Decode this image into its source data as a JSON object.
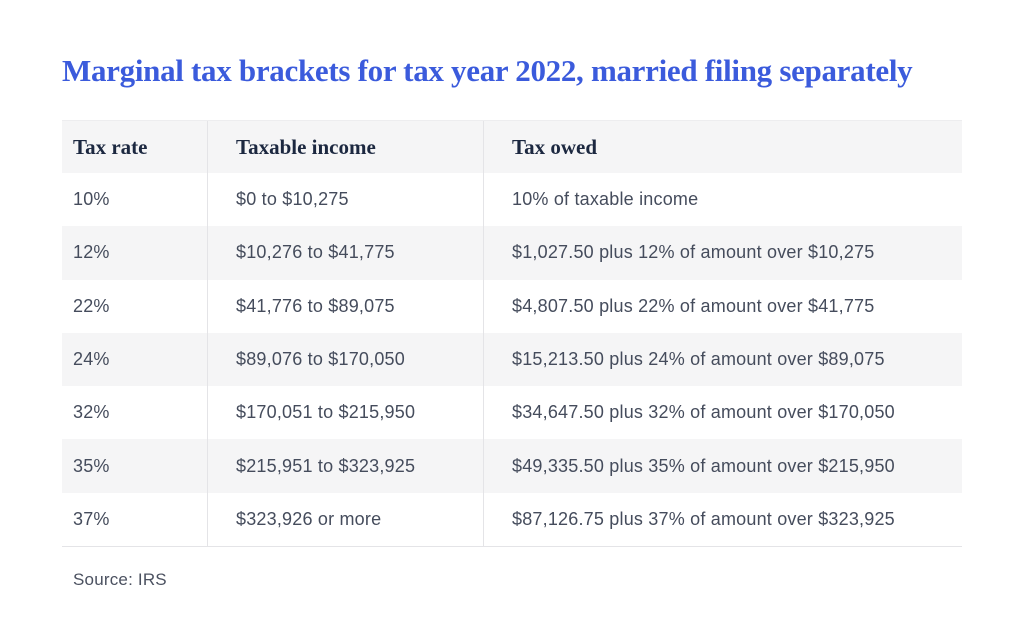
{
  "title": "Marginal tax brackets for tax year 2022, married filing separately",
  "source": "Source: IRS",
  "colors": {
    "title_blue": "#3B5BDC",
    "header_text": "#1C2840",
    "body_text": "#454C5C",
    "stripe_bg": "#F5F5F6",
    "divider": "#E4E4E7"
  },
  "chart_data": {
    "type": "table",
    "title": "Marginal tax brackets for tax year 2022, married filing separately",
    "source": "IRS",
    "columns": [
      "Tax rate",
      "Taxable income",
      "Tax owed"
    ],
    "rows": [
      [
        "10%",
        "$0 to $10,275",
        "10% of taxable income"
      ],
      [
        "12%",
        "$10,276 to $41,775",
        "$1,027.50 plus 12% of amount over $10,275"
      ],
      [
        "22%",
        "$41,776 to $89,075",
        "$4,807.50 plus 22% of amount over $41,775"
      ],
      [
        "24%",
        "$89,076 to $170,050",
        "$15,213.50 plus 24% of amount over $89,075"
      ],
      [
        "32%",
        "$170,051 to $215,950",
        "$34,647.50 plus 32% of amount over $170,050"
      ],
      [
        "35%",
        "$215,951 to $323,925",
        "$49,335.50 plus 35% of amount over $215,950"
      ],
      [
        "37%",
        "$323,926 or more",
        "$87,126.75 plus 37% of amount over $323,925"
      ]
    ],
    "layout": {
      "striped_rows": true,
      "stripe_pattern": "even body rows shaded",
      "column_dividers": true,
      "grid": "horizontal border below last row only"
    }
  }
}
